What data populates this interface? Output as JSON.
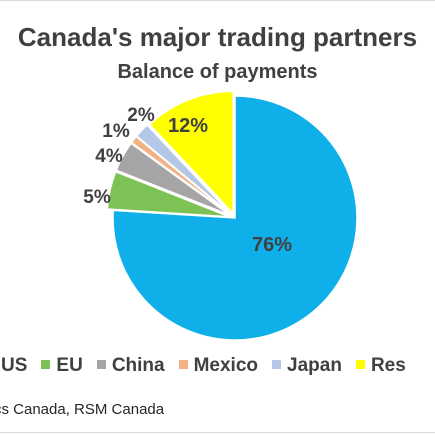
{
  "chart_data": {
    "type": "pie",
    "title": "Canada's major trading partners",
    "subtitle": "Balance of payments",
    "slices": [
      {
        "label": "US",
        "value": 76,
        "data_label": "76%",
        "color": "#0fb0ea"
      },
      {
        "label": "EU",
        "value": 5,
        "data_label": "5%",
        "color": "#7cc254"
      },
      {
        "label": "China",
        "value": 4,
        "data_label": "4%",
        "color": "#a5a5a5"
      },
      {
        "label": "Mexico",
        "value": 1,
        "data_label": "1%",
        "color": "#f4b183"
      },
      {
        "label": "Japan",
        "value": 2,
        "data_label": "2%",
        "color": "#b4c7e7"
      },
      {
        "label": "Rest",
        "value": 12,
        "data_label": "12%",
        "color": "#ffff00"
      }
    ],
    "legend": {
      "placement": "bottom",
      "entries": [
        "US",
        "EU",
        "China",
        "Mexico",
        "Japan",
        "Res"
      ]
    },
    "source": "cs Canada, RSM Canada"
  }
}
